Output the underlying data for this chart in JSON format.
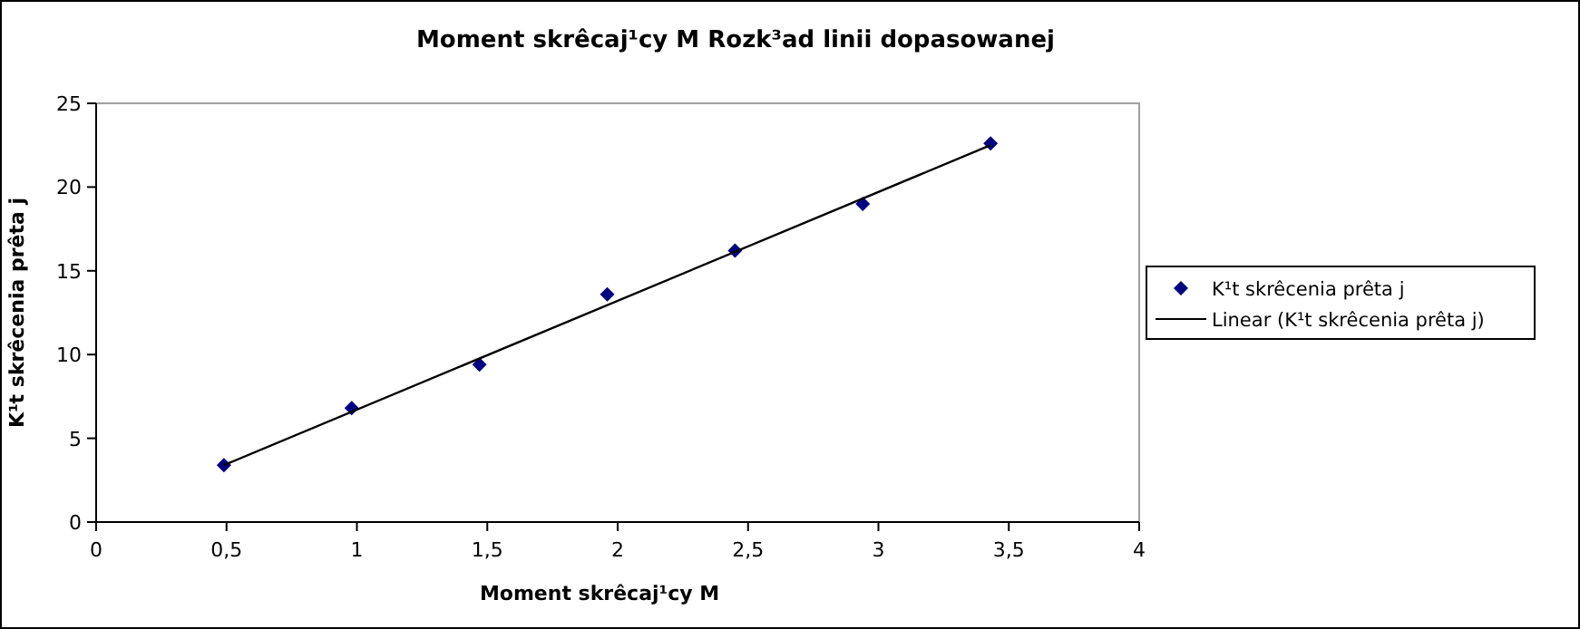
{
  "chart_data": {
    "type": "scatter",
    "title": "Moment skrêcaj¹cy M Rozk³ad linii dopasowanej",
    "xlabel": "Moment skrêcaj¹cy M",
    "ylabel": "K¹t skrêcenia prêta j",
    "xlim": [
      0,
      4
    ],
    "xticks": [
      0,
      {
        "value": 0.5,
        "label": "0,5"
      },
      1,
      {
        "value": 1.5,
        "label": "1,5"
      },
      2,
      {
        "value": 2.5,
        "label": "2,5"
      },
      3,
      {
        "value": 3.5,
        "label": "3,5"
      },
      4
    ],
    "ylim": [
      0,
      25
    ],
    "yticks": [
      0,
      5,
      10,
      15,
      20,
      25
    ],
    "grid": false,
    "legend": "right",
    "series": [
      {
        "name": "K¹t skrêcenia prêta j",
        "marker": "diamond",
        "color": "#000080",
        "x": [
          0.49,
          0.98,
          1.47,
          1.96,
          2.45,
          2.94,
          3.43
        ],
        "values": [
          3.4,
          6.8,
          9.4,
          13.6,
          16.2,
          19.0,
          22.6
        ]
      },
      {
        "name": "Linear (K¹t skrêcenia prêta j)",
        "type": "line",
        "marker": "none",
        "line_style": "solid",
        "color": "#000000",
        "x": [
          0.49,
          3.43
        ],
        "values": [
          3.4,
          22.5
        ]
      }
    ]
  }
}
